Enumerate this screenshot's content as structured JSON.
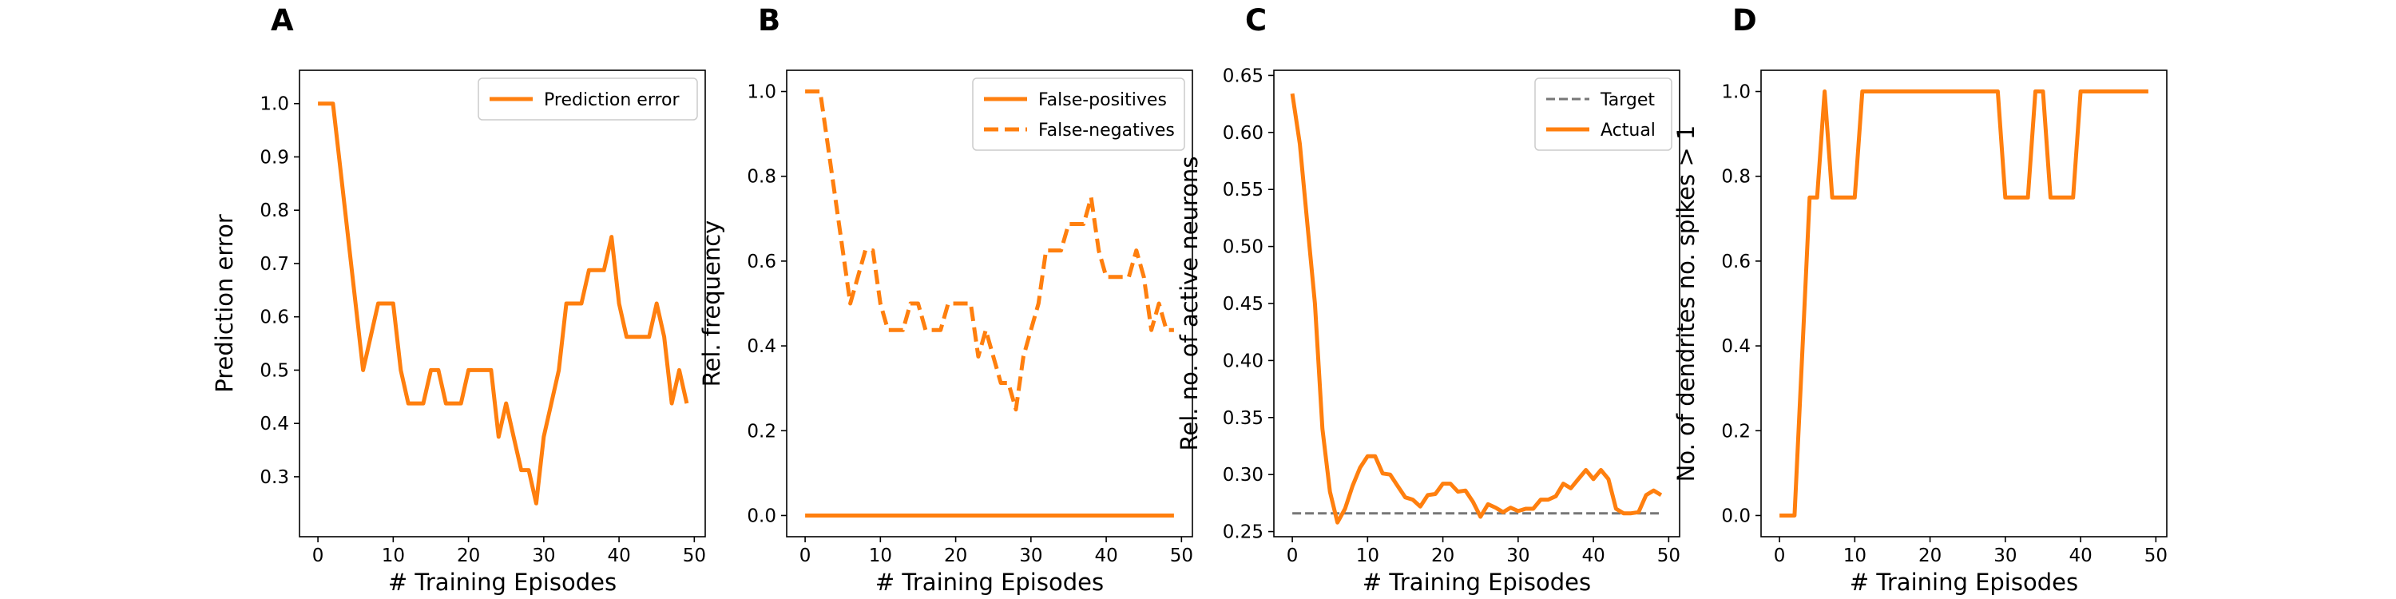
{
  "colors": {
    "orange": "#ff7f0e",
    "target_gray": "#777777"
  },
  "chart_data": [
    {
      "panel": "A",
      "type": "line",
      "xlabel": "# Training Episodes",
      "ylabel": "Prediction error",
      "xlim": [
        -2.45,
        51.45
      ],
      "ylim": [
        0.1875,
        1.0625
      ],
      "xticks": [
        0,
        10,
        20,
        30,
        40,
        50
      ],
      "yticks": [
        0.3,
        0.4,
        0.5,
        0.6,
        0.7,
        0.8,
        0.9,
        1.0
      ],
      "ytick_labels": [
        "0.3",
        "0.4",
        "0.5",
        "0.6",
        "0.7",
        "0.8",
        "0.9",
        "1.0"
      ],
      "legend": "top-right",
      "series": [
        {
          "name": "Prediction error",
          "style": "solid",
          "x": [
            0,
            1,
            2,
            3,
            4,
            5,
            6,
            7,
            8,
            9,
            10,
            11,
            12,
            13,
            14,
            15,
            16,
            17,
            18,
            19,
            20,
            21,
            22,
            23,
            24,
            25,
            26,
            27,
            28,
            29,
            30,
            31,
            32,
            33,
            34,
            35,
            36,
            37,
            38,
            39,
            40,
            41,
            42,
            43,
            44,
            45,
            46,
            47,
            48,
            49
          ],
          "values": [
            1.0,
            1.0,
            1.0,
            0.875,
            0.75,
            0.625,
            0.5,
            0.5625,
            0.625,
            0.625,
            0.625,
            0.5,
            0.4375,
            0.4375,
            0.4375,
            0.5,
            0.5,
            0.4375,
            0.4375,
            0.4375,
            0.5,
            0.5,
            0.5,
            0.5,
            0.375,
            0.4375,
            0.375,
            0.3125,
            0.3125,
            0.25,
            0.375,
            0.4375,
            0.5,
            0.625,
            0.625,
            0.625,
            0.6875,
            0.6875,
            0.6875,
            0.75,
            0.625,
            0.5625,
            0.5625,
            0.5625,
            0.5625,
            0.625,
            0.5625,
            0.4375,
            0.5,
            0.4375
          ]
        }
      ]
    },
    {
      "panel": "B",
      "type": "line",
      "xlabel": "# Training Episodes",
      "ylabel": "Rel. frequency",
      "xlim": [
        -2.45,
        51.45
      ],
      "ylim": [
        -0.05,
        1.05
      ],
      "xticks": [
        0,
        10,
        20,
        30,
        40,
        50
      ],
      "yticks": [
        0.0,
        0.2,
        0.4,
        0.6,
        0.8,
        1.0
      ],
      "ytick_labels": [
        "0.0",
        "0.2",
        "0.4",
        "0.6",
        "0.8",
        "1.0"
      ],
      "legend": "top-right",
      "series": [
        {
          "name": "False-positives",
          "style": "solid",
          "x": [
            0,
            49
          ],
          "values": [
            0,
            0
          ]
        },
        {
          "name": "False-negatives",
          "style": "dashed",
          "x": [
            0,
            1,
            2,
            3,
            4,
            5,
            6,
            7,
            8,
            9,
            10,
            11,
            12,
            13,
            14,
            15,
            16,
            17,
            18,
            19,
            20,
            21,
            22,
            23,
            24,
            25,
            26,
            27,
            28,
            29,
            30,
            31,
            32,
            33,
            34,
            35,
            36,
            37,
            38,
            39,
            40,
            41,
            42,
            43,
            44,
            45,
            46,
            47,
            48,
            49
          ],
          "values": [
            1.0,
            1.0,
            1.0,
            0.875,
            0.75,
            0.625,
            0.5,
            0.5625,
            0.625,
            0.625,
            0.5,
            0.4375,
            0.4375,
            0.4375,
            0.5,
            0.5,
            0.4375,
            0.4375,
            0.4375,
            0.5,
            0.5,
            0.5,
            0.5,
            0.375,
            0.4375,
            0.375,
            0.3125,
            0.3125,
            0.25,
            0.375,
            0.4375,
            0.5,
            0.625,
            0.625,
            0.625,
            0.6875,
            0.6875,
            0.6875,
            0.75,
            0.625,
            0.5625,
            0.5625,
            0.5625,
            0.5625,
            0.625,
            0.5625,
            0.4375,
            0.5,
            0.4375,
            0.4375
          ]
        }
      ]
    },
    {
      "panel": "C",
      "type": "line",
      "xlabel": "# Training Episodes",
      "ylabel": "Rel. no. of active neurons",
      "xlim": [
        -2.45,
        51.45
      ],
      "ylim": [
        0.2455,
        0.6545
      ],
      "xticks": [
        0,
        10,
        20,
        30,
        40,
        50
      ],
      "yticks": [
        0.25,
        0.3,
        0.35,
        0.4,
        0.45,
        0.5,
        0.55,
        0.6,
        0.65
      ],
      "ytick_labels": [
        "0.25",
        "0.30",
        "0.35",
        "0.40",
        "0.45",
        "0.50",
        "0.55",
        "0.60",
        "0.65"
      ],
      "legend": "top-right",
      "series": [
        {
          "name": "Target",
          "style": "dashed-gray",
          "x": [
            0,
            49
          ],
          "values": [
            0.266,
            0.266
          ]
        },
        {
          "name": "Actual",
          "style": "solid",
          "x": [
            0,
            1,
            2,
            3,
            4,
            5,
            6,
            7,
            8,
            9,
            10,
            11,
            12,
            13,
            14,
            15,
            16,
            17,
            18,
            19,
            20,
            21,
            22,
            23,
            24,
            25,
            26,
            27,
            28,
            29,
            30,
            31,
            32,
            33,
            34,
            35,
            36,
            37,
            38,
            39,
            40,
            41,
            42,
            43,
            44,
            45,
            46,
            47,
            48,
            49
          ],
          "values": [
            0.634,
            0.59,
            0.52,
            0.45,
            0.34,
            0.285,
            0.258,
            0.27,
            0.29,
            0.306,
            0.316,
            0.316,
            0.301,
            0.3,
            0.29,
            0.28,
            0.278,
            0.272,
            0.282,
            0.283,
            0.292,
            0.292,
            0.285,
            0.286,
            0.276,
            0.263,
            0.274,
            0.271,
            0.267,
            0.271,
            0.268,
            0.27,
            0.27,
            0.278,
            0.278,
            0.281,
            0.292,
            0.288,
            0.296,
            0.304,
            0.296,
            0.304,
            0.296,
            0.27,
            0.266,
            0.266,
            0.267,
            0.282,
            0.286,
            0.282
          ]
        }
      ]
    },
    {
      "panel": "D",
      "type": "line",
      "xlabel": "# Training Episodes",
      "ylabel": "No. of dendrites no. spikes > 1",
      "xlim": [
        -2.45,
        51.45
      ],
      "ylim": [
        -0.05,
        1.05
      ],
      "xticks": [
        0,
        10,
        20,
        30,
        40,
        50
      ],
      "yticks": [
        0.0,
        0.2,
        0.4,
        0.6,
        0.8,
        1.0
      ],
      "ytick_labels": [
        "0.0",
        "0.2",
        "0.4",
        "0.6",
        "0.8",
        "1.0"
      ],
      "legend": "none",
      "series": [
        {
          "style": "solid",
          "x": [
            0,
            1,
            2,
            3,
            4,
            5,
            6,
            7,
            8,
            9,
            10,
            11,
            12,
            13,
            14,
            15,
            16,
            17,
            18,
            19,
            20,
            21,
            22,
            23,
            24,
            25,
            26,
            27,
            28,
            29,
            30,
            31,
            32,
            33,
            34,
            35,
            36,
            37,
            38,
            39,
            40,
            41,
            42,
            43,
            44,
            45,
            46,
            47,
            48,
            49
          ],
          "values": [
            0,
            0,
            0,
            0.375,
            0.75,
            0.75,
            1.0,
            0.75,
            0.75,
            0.75,
            0.75,
            1.0,
            1.0,
            1.0,
            1.0,
            1.0,
            1.0,
            1.0,
            1.0,
            1.0,
            1.0,
            1.0,
            1.0,
            1.0,
            1.0,
            1.0,
            1.0,
            1.0,
            1.0,
            1.0,
            0.75,
            0.75,
            0.75,
            0.75,
            1.0,
            1.0,
            0.75,
            0.75,
            0.75,
            0.75,
            1.0,
            1.0,
            1.0,
            1.0,
            1.0,
            1.0,
            1.0,
            1.0,
            1.0,
            1.0
          ]
        }
      ]
    }
  ]
}
